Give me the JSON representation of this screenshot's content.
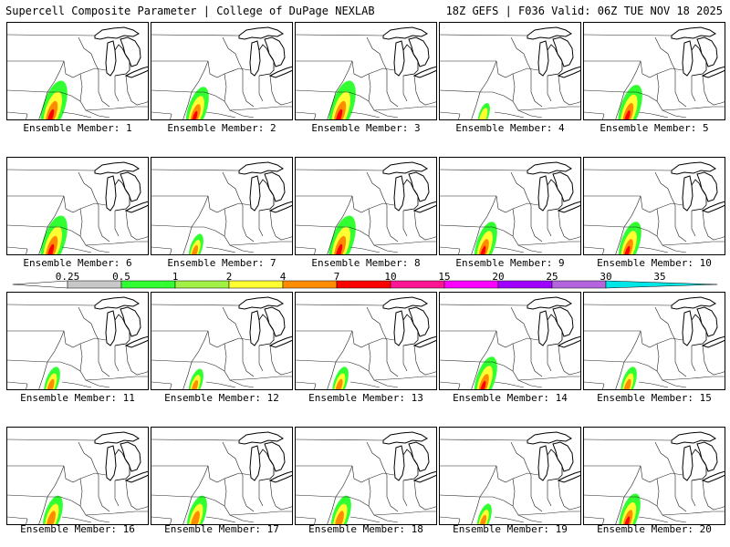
{
  "header": {
    "title": "Supercell Composite Parameter | College of DuPage NEXLAB",
    "run_info": "18Z GEFS | F036 Valid: 06Z TUE NOV 18 2025"
  },
  "members": [
    {
      "label": "Ensemble Member: 1",
      "intensity": 1.0
    },
    {
      "label": "Ensemble Member: 2",
      "intensity": 0.85
    },
    {
      "label": "Ensemble Member: 3",
      "intensity": 1.0
    },
    {
      "label": "Ensemble Member: 4",
      "intensity": 0.45
    },
    {
      "label": "Ensemble Member: 5",
      "intensity": 0.9
    },
    {
      "label": "Ensemble Member: 6",
      "intensity": 1.0
    },
    {
      "label": "Ensemble Member: 7",
      "intensity": 0.55
    },
    {
      "label": "Ensemble Member: 8",
      "intensity": 1.0
    },
    {
      "label": "Ensemble Member: 9",
      "intensity": 0.85
    },
    {
      "label": "Ensemble Member: 10",
      "intensity": 0.85
    },
    {
      "label": "Ensemble Member: 11",
      "intensity": 0.6
    },
    {
      "label": "Ensemble Member: 12",
      "intensity": 0.55
    },
    {
      "label": "Ensemble Member: 13",
      "intensity": 0.6
    },
    {
      "label": "Ensemble Member: 14",
      "intensity": 0.85
    },
    {
      "label": "Ensemble Member: 15",
      "intensity": 0.6
    },
    {
      "label": "Ensemble Member: 16",
      "intensity": 0.75
    },
    {
      "label": "Ensemble Member: 17",
      "intensity": 0.75
    },
    {
      "label": "Ensemble Member: 18",
      "intensity": 0.75
    },
    {
      "label": "Ensemble Member: 19",
      "intensity": 0.55
    },
    {
      "label": "Ensemble Member: 20",
      "intensity": 0.8
    }
  ],
  "colorbar": {
    "ticks": [
      "0.25",
      "0.5",
      "1",
      "2",
      "4",
      "7",
      "10",
      "15",
      "20",
      "25",
      "30",
      "35"
    ],
    "colors": [
      "#ffffff",
      "#c8c8c8",
      "#32ff32",
      "#a0f046",
      "#ffff32",
      "#ff8c00",
      "#ff0000",
      "#ff1493",
      "#ff00ff",
      "#a000ff",
      "#b464dc",
      "#00e6e6"
    ]
  }
}
